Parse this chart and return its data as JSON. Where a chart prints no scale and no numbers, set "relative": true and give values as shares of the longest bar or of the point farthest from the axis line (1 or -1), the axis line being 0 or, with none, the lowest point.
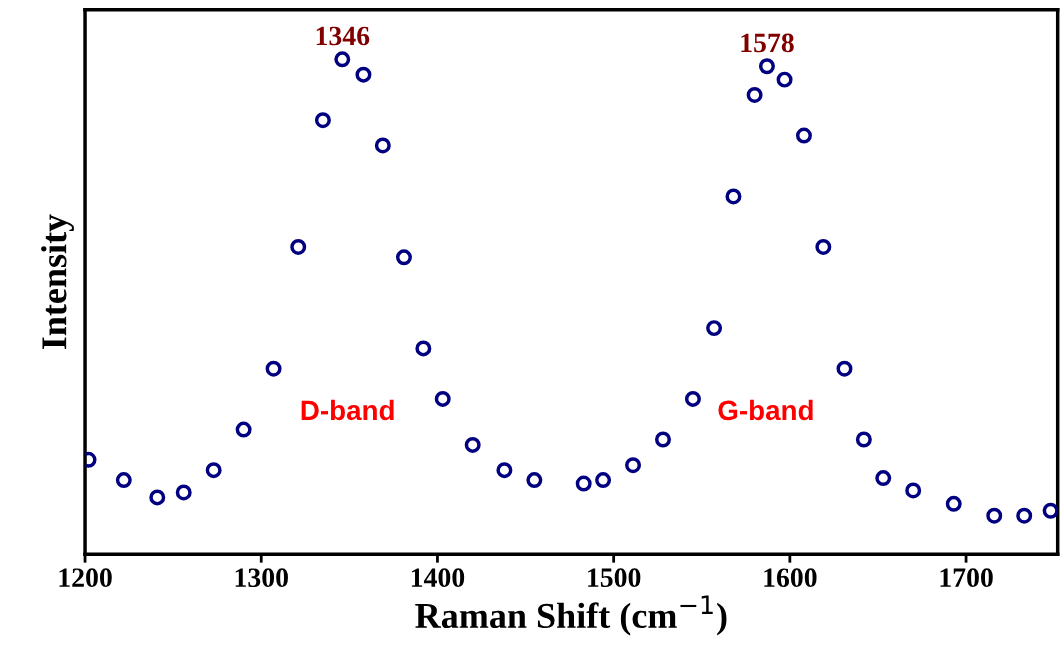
{
  "chart_data": {
    "type": "scatter",
    "relative": true,
    "xlabel": "Raman Shift (cm$^{−1}$)",
    "ylabel": "Intensity",
    "marker": "circle",
    "grid": false,
    "legend": false,
    "tick_labels": "x",
    "xlim": [
      1200,
      1752
    ],
    "xticks": [
      1200,
      1300,
      1400,
      1500,
      1600,
      1700
    ],
    "series": [
      {
        "color": "#000080",
        "x": [
          1202,
          1222,
          1241,
          1256,
          1273,
          1290,
          1307,
          1321,
          1335,
          1346,
          1358,
          1369,
          1381,
          1392,
          1403,
          1420,
          1438,
          1455,
          1483,
          1494,
          1511,
          1528,
          1545,
          1557,
          1568,
          1580,
          1587,
          1597,
          1608,
          1619,
          1631,
          1642,
          1653,
          1670,
          1693,
          1716,
          1733,
          1748
        ],
        "values": [
          0.191,
          0.15,
          0.115,
          0.125,
          0.17,
          0.252,
          0.375,
          0.621,
          0.877,
          1.0,
          0.969,
          0.826,
          0.6,
          0.416,
          0.314,
          0.221,
          0.17,
          0.15,
          0.143,
          0.15,
          0.18,
          0.232,
          0.314,
          0.457,
          0.723,
          0.928,
          0.986,
          0.959,
          0.846,
          0.621,
          0.375,
          0.232,
          0.154,
          0.129,
          0.102,
          0.078,
          0.078,
          0.088
        ]
      }
    ],
    "annotations": [
      {
        "text": "1346",
        "x": 1346,
        "y": 1.0
      },
      {
        "text": "1578",
        "x": 1587,
        "y": 0.986
      },
      "D-band",
      "G-band"
    ]
  }
}
